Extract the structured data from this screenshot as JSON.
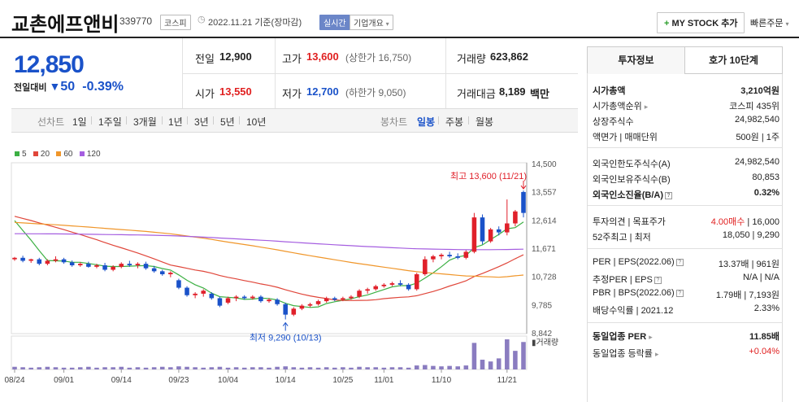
{
  "header": {
    "company": "교촌에프앤비",
    "code": "339770",
    "market": "코스피",
    "date_label": "2022.11.21  기준(장마감)",
    "realtime": "실시간",
    "company_info": "기업개요",
    "my_stock": "MY STOCK 추가",
    "quick_order": "빠른주문"
  },
  "price": {
    "current": "12,850",
    "change_label": "전일대비",
    "change": "50",
    "change_pct": "-0.39%"
  },
  "quote": {
    "prev_close_label": "전일",
    "prev_close": "12,900",
    "high_label": "고가",
    "high": "13,600",
    "upper_limit": "(상한가 16,750)",
    "volume_label": "거래량",
    "volume": "623,862",
    "open_label": "시가",
    "open": "13,550",
    "low_label": "저가",
    "low": "12,700",
    "lower_limit": "(하한가 9,050)",
    "amount_label": "거래대금",
    "amount": "8,189",
    "amount_unit": "백만"
  },
  "period_tabs": {
    "label": "선차트",
    "items": [
      "1일",
      "1주일",
      "3개월",
      "1년",
      "3년",
      "5년",
      "10년"
    ],
    "candle_label": "봉차트",
    "candle_items": [
      "일봉",
      "주봉",
      "월봉"
    ],
    "selected_candle": "일봉"
  },
  "right_tabs": [
    "투자정보",
    "호가 10단계"
  ],
  "invest_info": {
    "market_cap_label": "시가총액",
    "market_cap": "3,210억원",
    "rank_label": "시가총액순위",
    "rank": "코스피 435위",
    "shares_label": "상장주식수",
    "shares": "24,982,540",
    "face_label": "액면가 | 매매단위",
    "face": "500원 | 1주",
    "foreign_limit_label": "외국인한도주식수(A)",
    "foreign_limit": "24,982,540",
    "foreign_hold_label": "외국인보유주식수(B)",
    "foreign_hold": "80,853",
    "foreign_ratio_label": "외국인소진율(B/A)",
    "foreign_ratio": "0.32%",
    "opinion_label": "투자의견 | 목표주가",
    "opinion": "4.00매수",
    "target": "16,000",
    "week52_label": "52주최고 | 최저",
    "week52": "18,050 | 9,290",
    "per_label": "PER | EPS(2022.06)",
    "per": "13.37배 | 961원",
    "est_per_label": "추정PER | EPS",
    "est_per": "N/A | N/A",
    "pbr_label": "PBR | BPS(2022.06)",
    "pbr": "1.79배 | 7,193원",
    "div_label": "배당수익률 | 2021.12",
    "div": "2.33%",
    "ind_per_label": "동일업종 PER",
    "ind_per": "11.85배",
    "ind_chg_label": "동일업종 등락률",
    "ind_chg": "+0.04%"
  },
  "chart_data": {
    "type": "candlestick",
    "legend": [
      {
        "name": "5",
        "color": "#3cb043"
      },
      {
        "name": "20",
        "color": "#e0463a"
      },
      {
        "name": "60",
        "color": "#f0962a"
      },
      {
        "name": "120",
        "color": "#a55ee0"
      }
    ],
    "y_ticks": [
      14500,
      13557,
      12614,
      11671,
      10728,
      9785,
      8842
    ],
    "ylim": [
      8842,
      14500
    ],
    "x_labels": [
      "08/24",
      "09/01",
      "09/14",
      "09/23",
      "10/04",
      "10/14",
      "10/25",
      "11/01",
      "11/10",
      "11/21"
    ],
    "x_label_index": [
      0,
      6,
      13,
      20,
      26,
      33,
      40,
      45,
      52,
      60
    ],
    "annotation_high": "최고 13,600 (11/21)",
    "annotation_low": "최저 9,290 (10/13)",
    "volume_label": "거래량",
    "candles": [
      [
        11300,
        11380,
        11250,
        11350
      ],
      [
        11350,
        11420,
        11200,
        11250
      ],
      [
        11250,
        11320,
        11180,
        11300
      ],
      [
        11300,
        11350,
        11100,
        11150
      ],
      [
        11150,
        11300,
        11100,
        11250
      ],
      [
        11250,
        11400,
        11200,
        11300
      ],
      [
        11300,
        11350,
        11150,
        11200
      ],
      [
        11200,
        11260,
        11050,
        11100
      ],
      [
        11100,
        11200,
        11050,
        11150
      ],
      [
        11150,
        11220,
        11020,
        11050
      ],
      [
        11050,
        11150,
        11000,
        11100
      ],
      [
        11100,
        11180,
        10900,
        10950
      ],
      [
        10950,
        11100,
        10900,
        11050
      ],
      [
        11050,
        11200,
        11000,
        11150
      ],
      [
        11150,
        11250,
        11050,
        11100
      ],
      [
        11100,
        11200,
        11000,
        11150
      ],
      [
        11150,
        11220,
        10950,
        11000
      ],
      [
        11000,
        11080,
        10850,
        10900
      ],
      [
        10900,
        10950,
        10750,
        10800
      ],
      [
        10800,
        10900,
        10700,
        10850
      ],
      [
        10600,
        10650,
        10300,
        10350
      ],
      [
        10350,
        10400,
        10050,
        10100
      ],
      [
        10100,
        10200,
        10000,
        10150
      ],
      [
        10150,
        10300,
        10050,
        10250
      ],
      [
        10150,
        10200,
        9950,
        10000
      ],
      [
        10000,
        10050,
        9700,
        9750
      ],
      [
        9850,
        10050,
        9800,
        10000
      ],
      [
        10000,
        10100,
        9900,
        10050
      ],
      [
        10050,
        10100,
        9950,
        10000
      ],
      [
        10000,
        10100,
        9950,
        10050
      ],
      [
        10050,
        10100,
        9850,
        9900
      ],
      [
        9900,
        10000,
        9850,
        9950
      ],
      [
        9950,
        10000,
        9750,
        9800
      ],
      [
        9800,
        9850,
        9290,
        9450
      ],
      [
        9450,
        9700,
        9400,
        9650
      ],
      [
        9650,
        9800,
        9600,
        9750
      ],
      [
        9750,
        9850,
        9700,
        9800
      ],
      [
        9800,
        9950,
        9750,
        9900
      ],
      [
        9900,
        10050,
        9850,
        10000
      ],
      [
        10000,
        10050,
        9900,
        9950
      ],
      [
        9950,
        10050,
        9900,
        10000
      ],
      [
        10000,
        10100,
        9950,
        10050
      ],
      [
        10050,
        10300,
        10000,
        10250
      ],
      [
        10250,
        10350,
        10150,
        10300
      ],
      [
        10300,
        10450,
        10250,
        10400
      ],
      [
        10400,
        10500,
        10350,
        10450
      ],
      [
        10450,
        10550,
        10400,
        10500
      ],
      [
        10500,
        10600,
        10400,
        10450
      ],
      [
        10450,
        10500,
        10250,
        10300
      ],
      [
        10300,
        10850,
        10250,
        10800
      ],
      [
        10800,
        11400,
        10750,
        11300
      ],
      [
        11300,
        11450,
        11200,
        11400
      ],
      [
        11400,
        11500,
        11300,
        11450
      ],
      [
        11450,
        11550,
        11350,
        11400
      ],
      [
        11400,
        11500,
        11300,
        11350
      ],
      [
        11350,
        11600,
        11300,
        11550
      ],
      [
        11550,
        12850,
        11500,
        12700
      ],
      [
        12700,
        12800,
        11800,
        11900
      ],
      [
        11900,
        12350,
        11850,
        12300
      ],
      [
        12300,
        12400,
        12100,
        12200
      ],
      [
        12200,
        13300,
        12100,
        12500
      ],
      [
        12500,
        12950,
        12400,
        12900
      ],
      [
        13550,
        13600,
        12700,
        12850
      ]
    ],
    "volumes": [
      6,
      5,
      4,
      5,
      6,
      5,
      4,
      4,
      5,
      6,
      4,
      5,
      5,
      6,
      4,
      5,
      4,
      5,
      6,
      5,
      7,
      6,
      5,
      4,
      5,
      6,
      4,
      5,
      4,
      5,
      5,
      4,
      6,
      7,
      5,
      4,
      5,
      4,
      5,
      4,
      5,
      4,
      6,
      5,
      5,
      4,
      5,
      5,
      4,
      9,
      10,
      8,
      7,
      8,
      7,
      9,
      60,
      22,
      18,
      25,
      68,
      42,
      62
    ]
  }
}
